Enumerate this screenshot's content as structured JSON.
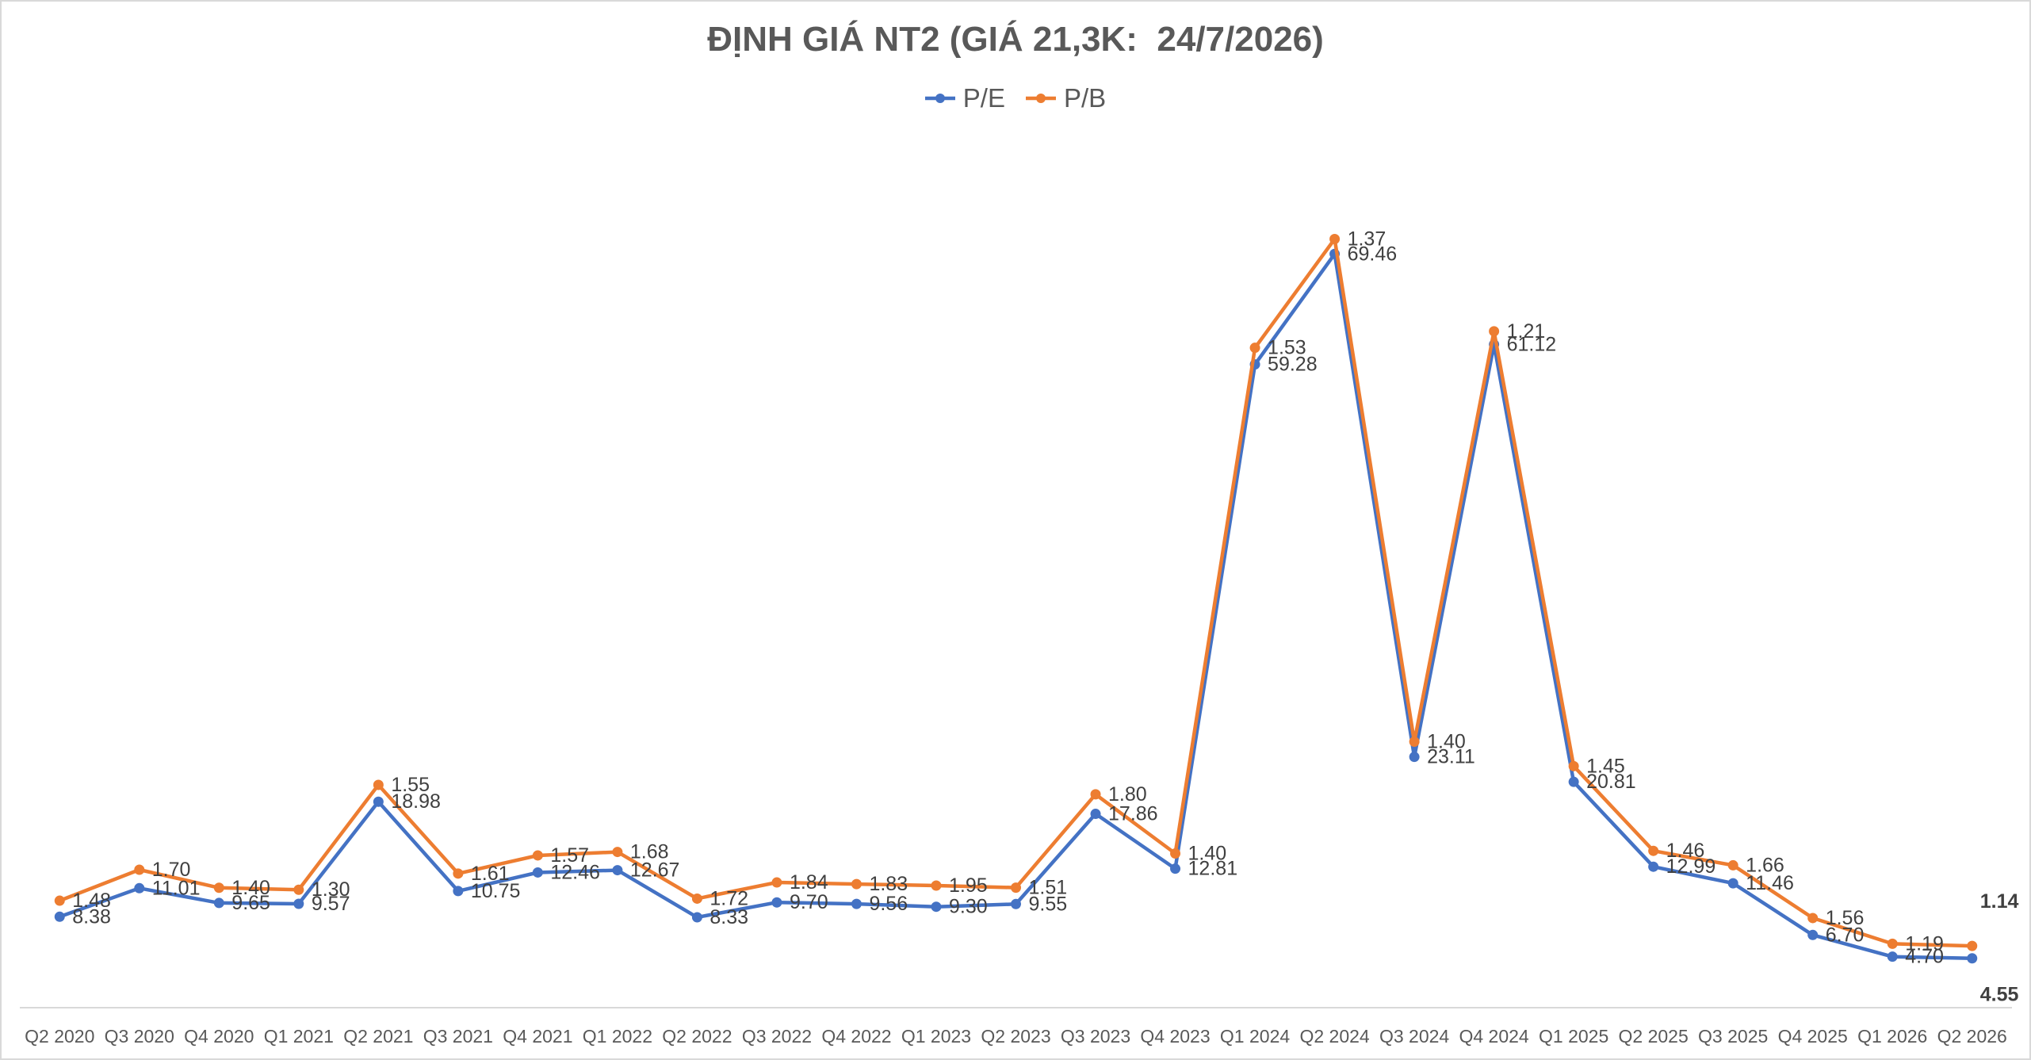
{
  "chart_data": {
    "type": "line",
    "stacked": true,
    "title": "ĐỊNH GIÁ NT2 (GIÁ 21,3K:  24/7/2026)",
    "categories": [
      "Q2 2020",
      "Q3 2020",
      "Q4 2020",
      "Q1 2021",
      "Q2 2021",
      "Q3 2021",
      "Q4 2021",
      "Q1 2022",
      "Q2 2022",
      "Q3 2022",
      "Q4 2022",
      "Q1 2023",
      "Q2 2023",
      "Q3 2023",
      "Q4 2023",
      "Q1 2024",
      "Q2 2024",
      "Q3 2024",
      "Q4 2024",
      "Q1 2025",
      "Q2 2025",
      "Q3 2025",
      "Q4 2025",
      "Q1 2026",
      "Q2 2026"
    ],
    "series": [
      {
        "name": "P/E",
        "color": "#4472C4",
        "values": [
          8.38,
          11.01,
          9.65,
          9.57,
          18.98,
          10.75,
          12.46,
          12.67,
          8.33,
          9.7,
          9.56,
          9.3,
          9.55,
          17.86,
          12.81,
          59.28,
          69.46,
          23.11,
          61.12,
          20.81,
          12.99,
          11.46,
          6.7,
          4.7,
          4.55
        ]
      },
      {
        "name": "P/B",
        "color": "#ED7D31",
        "values": [
          1.48,
          1.7,
          1.4,
          1.3,
          1.55,
          1.61,
          1.57,
          1.68,
          1.72,
          1.84,
          1.83,
          1.95,
          1.51,
          1.8,
          1.4,
          1.53,
          1.37,
          1.4,
          1.21,
          1.45,
          1.46,
          1.66,
          1.56,
          1.19,
          1.14
        ]
      }
    ],
    "ylim": [
      0,
      80
    ],
    "grid": false,
    "legend": "top",
    "data_labels": true
  }
}
